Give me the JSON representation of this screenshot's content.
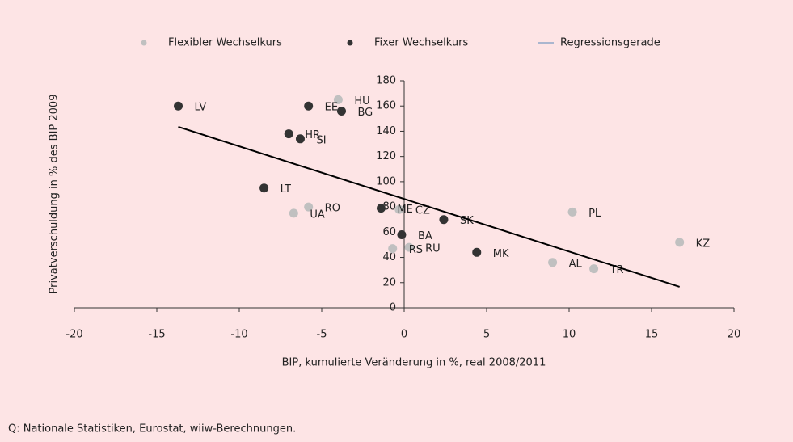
{
  "chart_data": {
    "type": "scatter",
    "x_label": "BIP, kumulierte Veränderung in %, real 2008/2011",
    "y_label": "Privatverschuldung in % des BIP 2009",
    "source": "Q: Nationale Statistiken, Eurostat, wiiw-Berechnungen.",
    "xlim": [
      -20,
      20
    ],
    "xticks": [
      -20,
      -15,
      -10,
      -5,
      0,
      5,
      10,
      15,
      20
    ],
    "ylim": [
      0,
      180
    ],
    "yticks": [
      0,
      20,
      40,
      60,
      80,
      100,
      120,
      140,
      160,
      180
    ],
    "legend": "top",
    "series": [
      {
        "name": "Flexibler Wechselkurs",
        "color": "#c0c0c0",
        "labels": [
          "HU",
          "RO",
          "UA",
          "CZ",
          "PL",
          "KZ",
          "RU",
          "RS",
          "AL",
          "TR"
        ],
        "x": [
          -4.0,
          -5.8,
          -6.7,
          -0.3,
          10.2,
          16.7,
          0.3,
          -0.7,
          9.0,
          11.5
        ],
        "values": [
          165,
          80,
          75,
          78,
          76,
          52,
          48,
          47,
          36,
          31
        ]
      },
      {
        "name": "Fixer Wechselkurs",
        "color": "#333333",
        "labels": [
          "LV",
          "EE",
          "BG",
          "HR",
          "SI",
          "LT",
          "ME",
          "SK",
          "BA",
          "MK"
        ],
        "x": [
          -13.7,
          -5.8,
          -3.8,
          -7.0,
          -6.3,
          -8.5,
          -1.4,
          2.4,
          -0.15,
          4.4
        ],
        "values": [
          160,
          160,
          156,
          138,
          134,
          95,
          79,
          70,
          58,
          44
        ]
      },
      {
        "name": "Regressionsgerade",
        "color": "#000000",
        "type": "line",
        "x": [
          -13.7,
          16.7
        ],
        "values": [
          143.5,
          16.7
        ]
      }
    ]
  }
}
